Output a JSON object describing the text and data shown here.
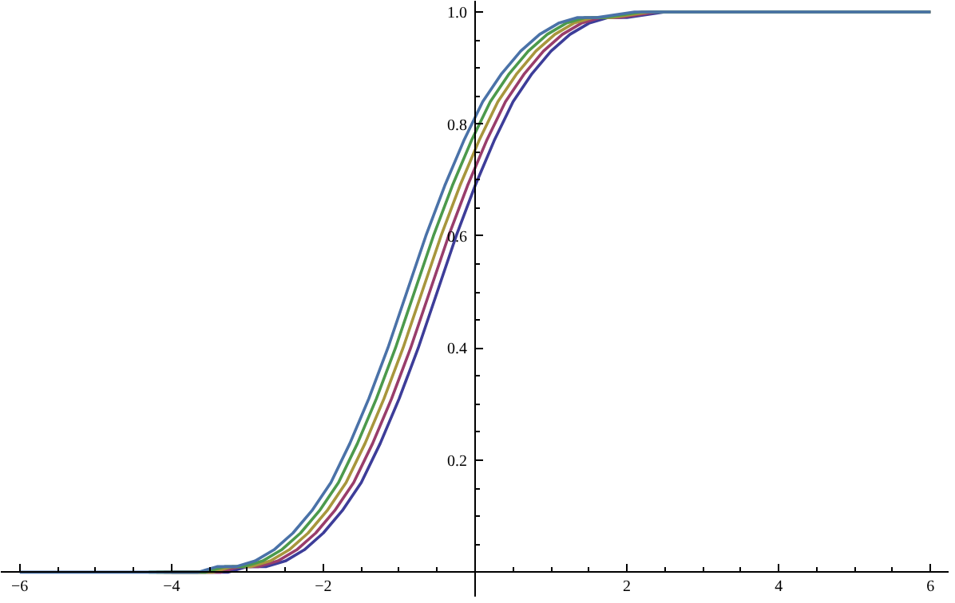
{
  "chart_data": {
    "type": "line",
    "xlim": [
      -6.25,
      6.25
    ],
    "ylim": [
      -0.045,
      1.02
    ],
    "xticks": [
      -6,
      -4,
      -2,
      2,
      4,
      6
    ],
    "yticks": [
      0.2,
      0.4,
      0.6,
      {
        "value": 0.8,
        "label": "0.8"
      },
      {
        "value": 1,
        "label": "1.0"
      }
    ],
    "grid": false,
    "line_style": "solid",
    "marker": "none",
    "series": [
      {
        "color": "#3d3d99",
        "x": [
          -4,
          -3.5,
          -3.25,
          -3,
          -2.75,
          -2.5,
          -2.25,
          -2,
          -1.75,
          -1.5,
          -1.25,
          -1,
          -0.75,
          -0.5,
          -0.25,
          0,
          0.25,
          0.5,
          0.75,
          1,
          1.25,
          1.5,
          1.75,
          2,
          2.5,
          3.5,
          6
        ],
        "values": [
          0,
          0,
          0,
          0.01,
          0.01,
          0.02,
          0.04,
          0.07,
          0.11,
          0.16,
          0.23,
          0.31,
          0.4,
          0.5,
          0.6,
          0.69,
          0.77,
          0.84,
          0.89,
          0.93,
          0.96,
          0.98,
          0.99,
          0.99,
          1.0,
          1.0,
          1.0
        ]
      },
      {
        "color": "#993d6b",
        "x": [
          -4.1,
          -3.6,
          -3.35,
          -3.1,
          -2.85,
          -2.6,
          -2.35,
          -2.1,
          -1.85,
          -1.6,
          -1.35,
          -1.1,
          -0.85,
          -0.6,
          -0.35,
          -0.1,
          0.15,
          0.4,
          0.65,
          0.9,
          1.15,
          1.4,
          1.65,
          1.9,
          2.4,
          3.4,
          6
        ],
        "values": [
          0,
          0,
          0,
          0.01,
          0.01,
          0.02,
          0.04,
          0.07,
          0.11,
          0.16,
          0.23,
          0.31,
          0.4,
          0.5,
          0.6,
          0.69,
          0.77,
          0.84,
          0.89,
          0.93,
          0.96,
          0.98,
          0.99,
          0.99,
          1.0,
          1.0,
          1.0
        ]
      },
      {
        "color": "#a8963d",
        "x": [
          -4.2,
          -3.7,
          -3.45,
          -3.2,
          -2.95,
          -2.7,
          -2.45,
          -2.2,
          -1.95,
          -1.7,
          -1.45,
          -1.2,
          -0.95,
          -0.7,
          -0.45,
          -0.2,
          0.05,
          0.3,
          0.55,
          0.8,
          1.05,
          1.3,
          1.55,
          1.8,
          2.3,
          3.3,
          6
        ],
        "values": [
          0,
          0,
          0,
          0.01,
          0.01,
          0.02,
          0.04,
          0.07,
          0.11,
          0.16,
          0.23,
          0.31,
          0.4,
          0.5,
          0.6,
          0.69,
          0.77,
          0.84,
          0.89,
          0.93,
          0.96,
          0.98,
          0.99,
          0.99,
          1.0,
          1.0,
          1.0
        ]
      },
      {
        "color": "#4c9a4c",
        "x": [
          -4.3,
          -3.8,
          -3.55,
          -3.3,
          -3.05,
          -2.8,
          -2.55,
          -2.3,
          -2.05,
          -1.8,
          -1.55,
          -1.3,
          -1.05,
          -0.8,
          -0.55,
          -0.3,
          -0.05,
          0.2,
          0.45,
          0.7,
          0.95,
          1.2,
          1.45,
          1.7,
          2.2,
          3.2,
          6
        ],
        "values": [
          0,
          0,
          0,
          0.01,
          0.01,
          0.02,
          0.04,
          0.07,
          0.11,
          0.16,
          0.23,
          0.31,
          0.4,
          0.5,
          0.6,
          0.69,
          0.77,
          0.84,
          0.89,
          0.93,
          0.96,
          0.98,
          0.99,
          0.99,
          1.0,
          1.0,
          1.0
        ]
      },
      {
        "color": "#4a72a8",
        "x": [
          -6,
          -4.9,
          -4.4,
          -3.9,
          -3.65,
          -3.4,
          -3.15,
          -2.9,
          -2.65,
          -2.4,
          -2.15,
          -1.9,
          -1.65,
          -1.4,
          -1.15,
          -0.9,
          -0.65,
          -0.4,
          -0.15,
          0.1,
          0.35,
          0.6,
          0.85,
          1.1,
          1.35,
          1.6,
          2.1,
          3.1,
          6
        ],
        "values": [
          0,
          0,
          0,
          0,
          0,
          0.01,
          0.01,
          0.02,
          0.04,
          0.07,
          0.11,
          0.16,
          0.23,
          0.31,
          0.4,
          0.5,
          0.6,
          0.69,
          0.77,
          0.84,
          0.89,
          0.93,
          0.96,
          0.98,
          0.99,
          0.99,
          1.0,
          1.0,
          1.0
        ]
      }
    ]
  }
}
